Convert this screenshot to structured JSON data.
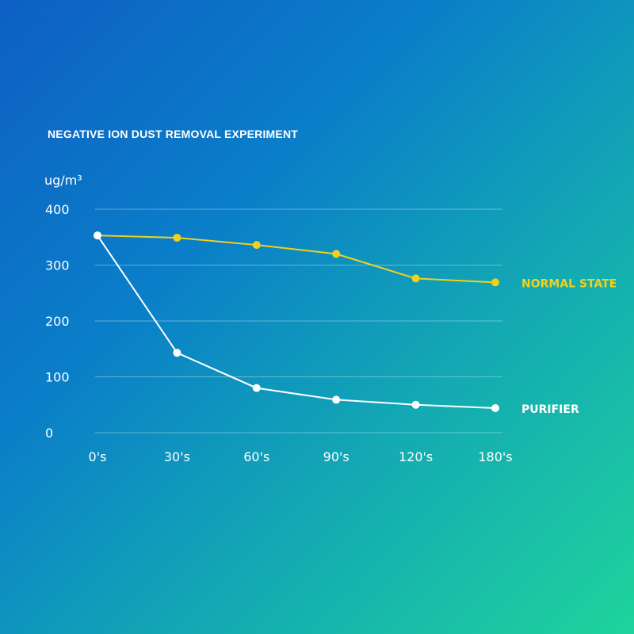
{
  "chart_data": {
    "type": "line",
    "title": "NEGATIVE ION DUST REMOVAL EXPERIMENT",
    "ylabel": "ug/m³",
    "xlabel": "",
    "categories": [
      "0's",
      "30's",
      "60's",
      "90's",
      "120's",
      "180's"
    ],
    "ylim": [
      0,
      400
    ],
    "yticks": [
      "0",
      "100",
      "200",
      "300",
      "400"
    ],
    "grid": true,
    "series": [
      {
        "name": "NORMAL STATE",
        "color": "#f1d11b",
        "values": [
          353,
          349,
          336,
          320,
          276,
          269
        ]
      },
      {
        "name": "PURIFIER",
        "color": "#ffffff",
        "values": [
          353,
          143,
          80,
          59,
          50,
          44
        ]
      }
    ]
  }
}
